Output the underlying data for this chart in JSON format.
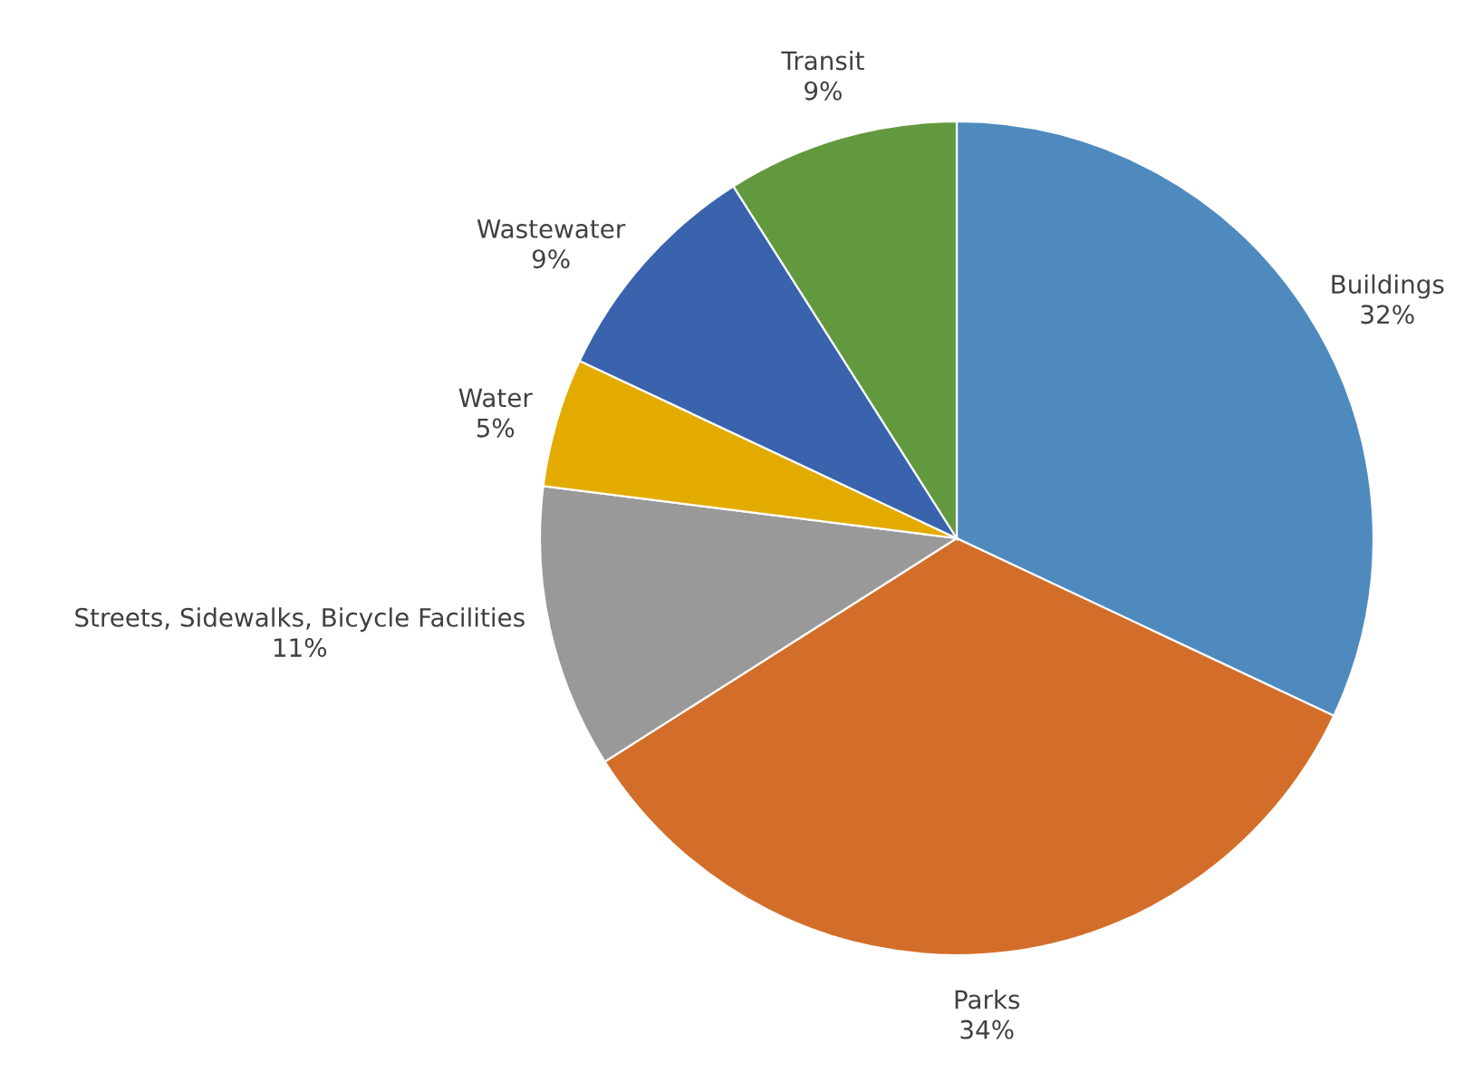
{
  "chart_data": {
    "type": "pie",
    "categories": [
      "Buildings",
      "Parks",
      "Streets, Sidewalks, Bicycle Facilities",
      "Water",
      "Wastewater",
      "Transit"
    ],
    "values": [
      32,
      34,
      11,
      5,
      9,
      9
    ],
    "colors": [
      "#4f8abf",
      "#d36e2a",
      "#999999",
      "#e3ab00",
      "#3a63ae",
      "#62993e"
    ],
    "value_labels": [
      "32%",
      "34%",
      "11%",
      "5%",
      "9%",
      "9%"
    ]
  }
}
